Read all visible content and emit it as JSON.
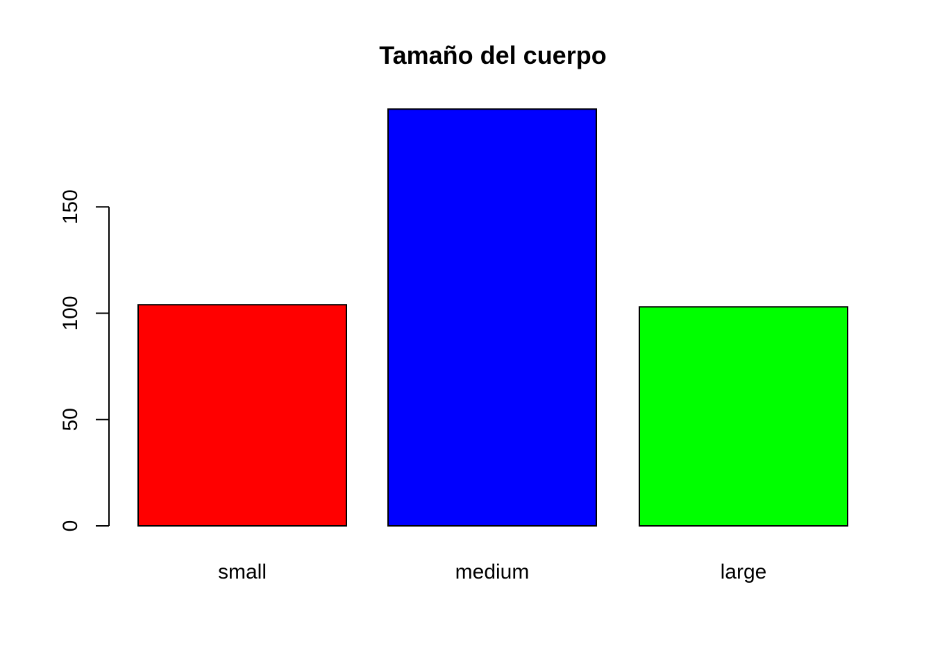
{
  "chart_data": {
    "type": "bar",
    "title": "Tamaño del cuerpo",
    "xlabel": "",
    "ylabel": "",
    "categories": [
      "small",
      "medium",
      "large"
    ],
    "values": [
      104,
      196,
      103
    ],
    "colors": [
      "#ff0000",
      "#0000ff",
      "#00ff00"
    ],
    "yticks": [
      0,
      50,
      100,
      150
    ],
    "ylim": [
      0,
      196
    ],
    "grid": false,
    "legend": "none"
  }
}
